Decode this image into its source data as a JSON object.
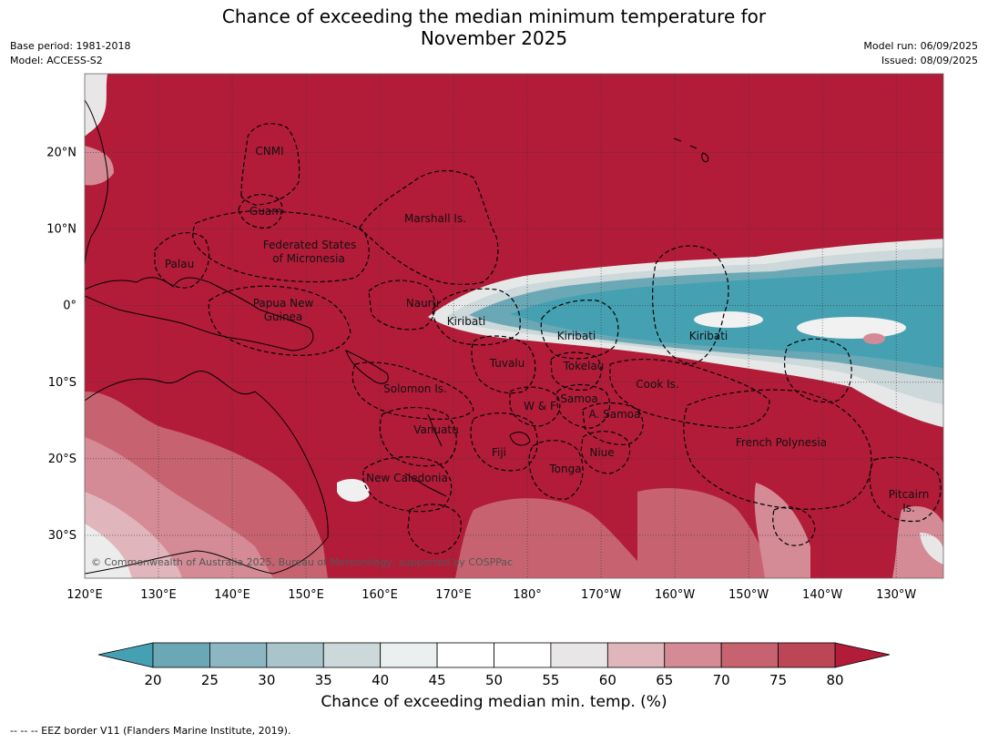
{
  "title_line1": "Chance of exceeding the median minimum temperature for",
  "title_line2": "November 2025",
  "meta_left": {
    "base_period": "Base period: 1981-2018",
    "model": "Model: ACCESS-S2"
  },
  "meta_right": {
    "model_run": "Model run: 06/09/2025",
    "issued": "Issued: 08/09/2025"
  },
  "copyright": "© Commonwealth of Australia 2025, Bureau of Meteorology, supported by COSPPac",
  "lon_labels": [
    "120°E",
    "130°E",
    "140°E",
    "150°E",
    "160°E",
    "170°E",
    "180°",
    "170°W",
    "160°W",
    "150°W",
    "140°W",
    "130°W"
  ],
  "lat_labels": [
    "20°N",
    "10°N",
    "0°",
    "10°S",
    "20°S",
    "30°S"
  ],
  "places": {
    "cnmi": "CNMI",
    "guam": "Guam",
    "marshall": "Marshall Is.",
    "fsm1": "Federated States",
    "fsm2": "of Micronesia",
    "palau": "Palau",
    "nauru": "Nauru",
    "png1": "Papua New",
    "png2": "Guinea",
    "kiribati_w": "Kiribati",
    "kiribati_c": "Kiribati",
    "kiribati_e": "Kiribati",
    "tuvalu": "Tuvalu",
    "tokelau": "Tokelau",
    "cook": "Cook Is.",
    "solomon": "Solomon Is.",
    "samoa": "Samoa",
    "wf": "W & F",
    "asamoa": "A. Samoa",
    "vanuatu": "Vanuatu",
    "fiji": "Fiji",
    "niue": "Niue",
    "tonga": "Tonga",
    "fp": "French Polynesia",
    "newcal": "New Caledonia",
    "pitcairn1": "Pitcairn",
    "pitcairn2": "Is."
  },
  "colorbar": {
    "ticks": [
      "20",
      "25",
      "30",
      "35",
      "40",
      "45",
      "50",
      "55",
      "60",
      "65",
      "70",
      "75",
      "80"
    ],
    "colors": [
      "#6ba8b6",
      "#8cb6c1",
      "#a9c4ca",
      "#ccd8da",
      "#eaf0f0",
      "#ffffff",
      "#ffffff",
      "#e9e6e7",
      "#e0b6bc",
      "#d48b96",
      "#c76370",
      "#bc4556"
    ],
    "low_color": "#45a1b1",
    "high_color": "#b21c39",
    "label": "Chance of exceeding median min. temp. (%)"
  },
  "footnote": "--  --  -- EEZ border V11 (Flanders Marine Institute, 2019)."
}
